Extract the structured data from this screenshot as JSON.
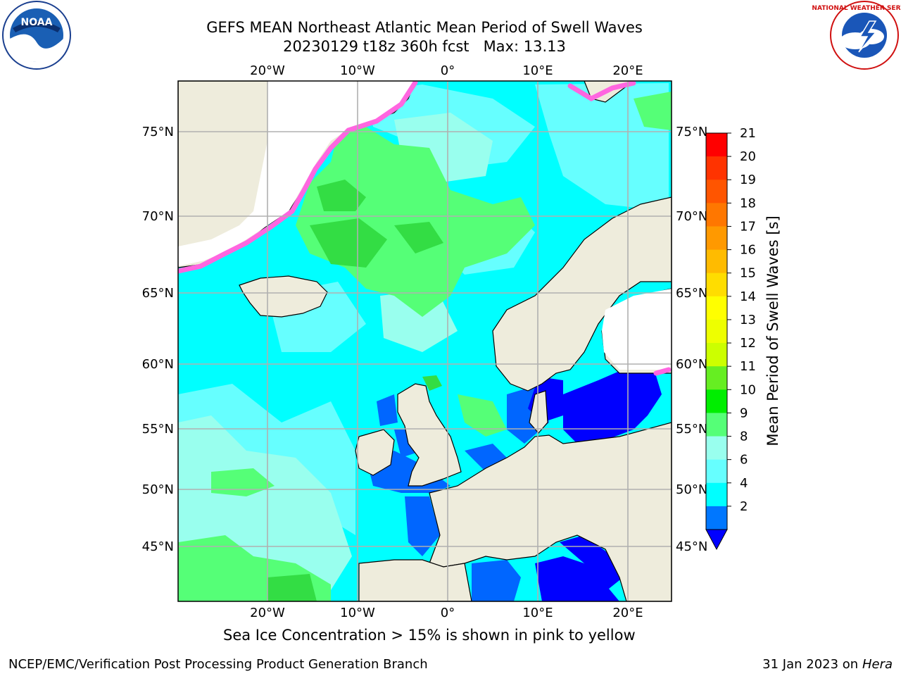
{
  "title": {
    "line1": "GEFS MEAN Northeast Atlantic Mean Period of Swell Waves",
    "line2": "20230129 t18z 360h fcst   Max: 13.13"
  },
  "logos": {
    "left": {
      "icon": "noaa-logo-icon",
      "text": "NOAA"
    },
    "right": {
      "icon": "nws-logo-icon",
      "text": "NATIONAL WEATHER SERVICE"
    }
  },
  "map": {
    "lon_ticks_top": [
      "20°W",
      "10°W",
      "0°",
      "10°E",
      "20°E"
    ],
    "lon_ticks_bottom": [
      "20°W",
      "10°W",
      "0°",
      "10°E",
      "20°E"
    ],
    "lat_ticks_left": [
      "75°N",
      "70°N",
      "65°N",
      "60°N",
      "55°N",
      "50°N",
      "45°N"
    ],
    "lat_ticks_right": [
      "75°N",
      "70°N",
      "65°N",
      "60°N",
      "55°N",
      "50°N",
      "45°N"
    ],
    "colors": {
      "land": "#eeecdc",
      "ice_pink": "#ff66e0",
      "ocean_cyan": "#00ffff",
      "ocean_light": "#66ffff",
      "ocean_aqua": "#99ffee",
      "swell_green_light": "#55ff77",
      "swell_green": "#33dd44",
      "shallow_blue": "#0066ff",
      "sea_blue": "#0000ff",
      "grid": "#b0b0b0"
    }
  },
  "colorbar": {
    "label": "Mean Period of Swell Waves [s]",
    "ticks": [
      "21",
      "20",
      "19",
      "18",
      "17",
      "16",
      "15",
      "14",
      "13",
      "12",
      "11",
      "10",
      "9",
      "8",
      "6",
      "4",
      "2"
    ],
    "colors": [
      "#ff0000",
      "#ff3300",
      "#ff5500",
      "#ff7700",
      "#ff9900",
      "#ffbb00",
      "#ffdd00",
      "#ffff00",
      "#eeff00",
      "#ccff00",
      "#66ee22",
      "#00ee00",
      "#55ff77",
      "#99ffee",
      "#66ffff",
      "#00ffff",
      "#0077ff"
    ],
    "extend_color": "#0000ff"
  },
  "caption": "Sea Ice Concentration > 15% is shown in pink to yellow",
  "footer": {
    "left": "NCEP/EMC/Verification Post Processing Product Generation Branch",
    "right_prefix": "31 Jan 2023 on ",
    "right_host": "Hera"
  }
}
